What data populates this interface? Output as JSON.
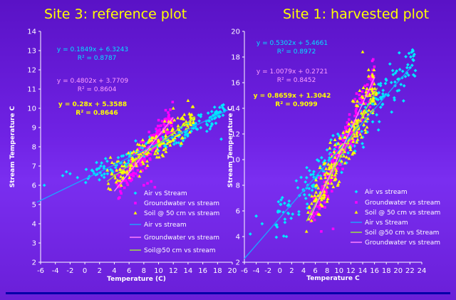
{
  "slide_bg": "#6a1fd8",
  "titles": [
    "Site 3: reference plot",
    "Site 1: harvested plot"
  ],
  "chart_data": [
    {
      "type": "scatter",
      "title": "Site 3: reference plot",
      "xlabel": "Temperature (C)",
      "ylabel": "Stream Temperature C",
      "xlim": [
        -6,
        20
      ],
      "ylim": [
        2,
        14
      ],
      "xticks": [
        "-6",
        "-4",
        "-2",
        "0",
        "2",
        "4",
        "6",
        "8",
        "10",
        "12",
        "14",
        "16",
        "18",
        "20"
      ],
      "yticks": [
        "2",
        "3",
        "4",
        "5",
        "6",
        "7",
        "8",
        "9",
        "10",
        "11",
        "12",
        "13",
        "14"
      ],
      "grid": false,
      "legend_position": "bottom-right",
      "series": [
        {
          "name": "Air vs Stream",
          "color": "#00e5ff",
          "marker": "diamond",
          "x_range": [
            0,
            19
          ],
          "slope": 0.1849,
          "intercept": 6.3243,
          "spread": 0.35,
          "extras": [
            [
              -5.5,
              6.0
            ],
            [
              -3,
              6.5
            ],
            [
              -2,
              6.6
            ],
            [
              -1,
              6.4
            ],
            [
              -2.5,
              6.7
            ],
            [
              18.5,
              8.4
            ],
            [
              19,
              9.9
            ]
          ]
        },
        {
          "name": "Groundwater vs stream",
          "color": "#ff00ff",
          "marker": "square",
          "x_range": [
            4,
            12
          ],
          "slope": 0.4802,
          "intercept": 3.7709,
          "spread": 0.45,
          "extras": [
            [
              8,
              6.0
            ],
            [
              8.5,
              6.1
            ],
            [
              9.5,
              5.9
            ],
            [
              9,
              6.2
            ]
          ]
        },
        {
          "name": "Soil @ 50 cm vs stream",
          "color": "#ffff00",
          "marker": "triangle",
          "x_range": [
            3,
            15
          ],
          "slope": 0.28,
          "intercept": 5.3588,
          "spread": 0.5,
          "extras": [
            [
              14,
              10.4
            ],
            [
              12,
              10.0
            ]
          ]
        }
      ],
      "trendlines": [
        {
          "name": "Air vs stream",
          "color": "#1fa0ff",
          "x": [
            -6.5,
            19.5
          ],
          "slope": 0.1849,
          "intercept": 6.3243
        },
        {
          "name": "Groundwater vs stream",
          "color": "#ff7fff",
          "x": [
            4,
            12
          ],
          "slope": 0.4802,
          "intercept": 3.7709
        },
        {
          "name": "Soil@50 cm vs stream",
          "color": "#a0e040",
          "x": [
            3,
            15
          ],
          "slope": 0.28,
          "intercept": 5.3588
        }
      ],
      "equations": [
        {
          "eq": "y = 0.1849x + 6.3243",
          "r2": "R² = 0.8787",
          "color": "#00e5ff"
        },
        {
          "eq": "y = 0.4802x + 3.7709",
          "r2": "R² = 0.8604",
          "color": "#ff9fff"
        },
        {
          "eq": "y = 0.28x + 5.3588",
          "r2": "R² = 0.8646",
          "color": "#ffff00"
        }
      ]
    },
    {
      "type": "scatter",
      "title": "Site 1: harvested plot",
      "xlabel": "Temperature C",
      "ylabel": "Stream Temperature C",
      "xlim": [
        -6,
        24
      ],
      "ylim": [
        2,
        20
      ],
      "xticks": [
        "-6",
        "-4",
        "-2",
        "0",
        "2",
        "4",
        "6",
        "8",
        "10",
        "12",
        "14",
        "16",
        "18",
        "20",
        "22",
        "24"
      ],
      "yticks": [
        "2",
        "4",
        "6",
        "8",
        "10",
        "12",
        "14",
        "16",
        "18",
        "20"
      ],
      "grid": false,
      "legend_position": "bottom-right",
      "series": [
        {
          "name": "Air vs stream",
          "color": "#00e5ff",
          "marker": "diamond",
          "x_range": [
            -1,
            23
          ],
          "slope": 0.5302,
          "intercept": 5.4661,
          "spread": 1.0,
          "extras": [
            [
              -5,
              4.2
            ],
            [
              -4,
              5.6
            ],
            [
              -3,
              5.0
            ],
            [
              22.5,
              17.8
            ]
          ]
        },
        {
          "name": "Groundwater vs stream",
          "color": "#ff00ff",
          "marker": "square",
          "x_range": [
            5,
            16
          ],
          "slope": 1.0079,
          "intercept": 0.2721,
          "spread": 0.9,
          "extras": [
            [
              7,
              4.4
            ],
            [
              9,
              4.6
            ]
          ]
        },
        {
          "name": "Soil @ 50 cm vs stream",
          "color": "#ffff00",
          "marker": "triangle",
          "x_range": [
            4.5,
            16.5
          ],
          "slope": 0.8659,
          "intercept": 1.3042,
          "spread": 1.2,
          "extras": [
            [
              4.5,
              4.4
            ],
            [
              14,
              18.4
            ],
            [
              15,
              17.0
            ]
          ]
        }
      ],
      "trendlines": [
        {
          "name": "Air vs Stream",
          "color": "#1fa0ff",
          "x": [
            -6,
            22
          ],
          "slope": 0.5302,
          "intercept": 5.4661
        },
        {
          "name": "Soil @50 cm vs Stream",
          "color": "#a0e040",
          "x": [
            4.5,
            16.5
          ],
          "slope": 0.8659,
          "intercept": 1.3042
        },
        {
          "name": "Groundwater vs stream",
          "color": "#ff7fff",
          "x": [
            5,
            16
          ],
          "slope": 1.0079,
          "intercept": 0.2721
        }
      ],
      "equations": [
        {
          "eq": "y = 0.5302x + 5.4661",
          "r2": "R² = 0.8972",
          "color": "#00e5ff"
        },
        {
          "eq": "y = 1.0079x + 0.2721",
          "r2": "R² = 0.8452",
          "color": "#ff9fff"
        },
        {
          "eq": "y = 0.8659x + 1.3042",
          "r2": "R² = 0.9099",
          "color": "#ffff00"
        }
      ]
    }
  ]
}
